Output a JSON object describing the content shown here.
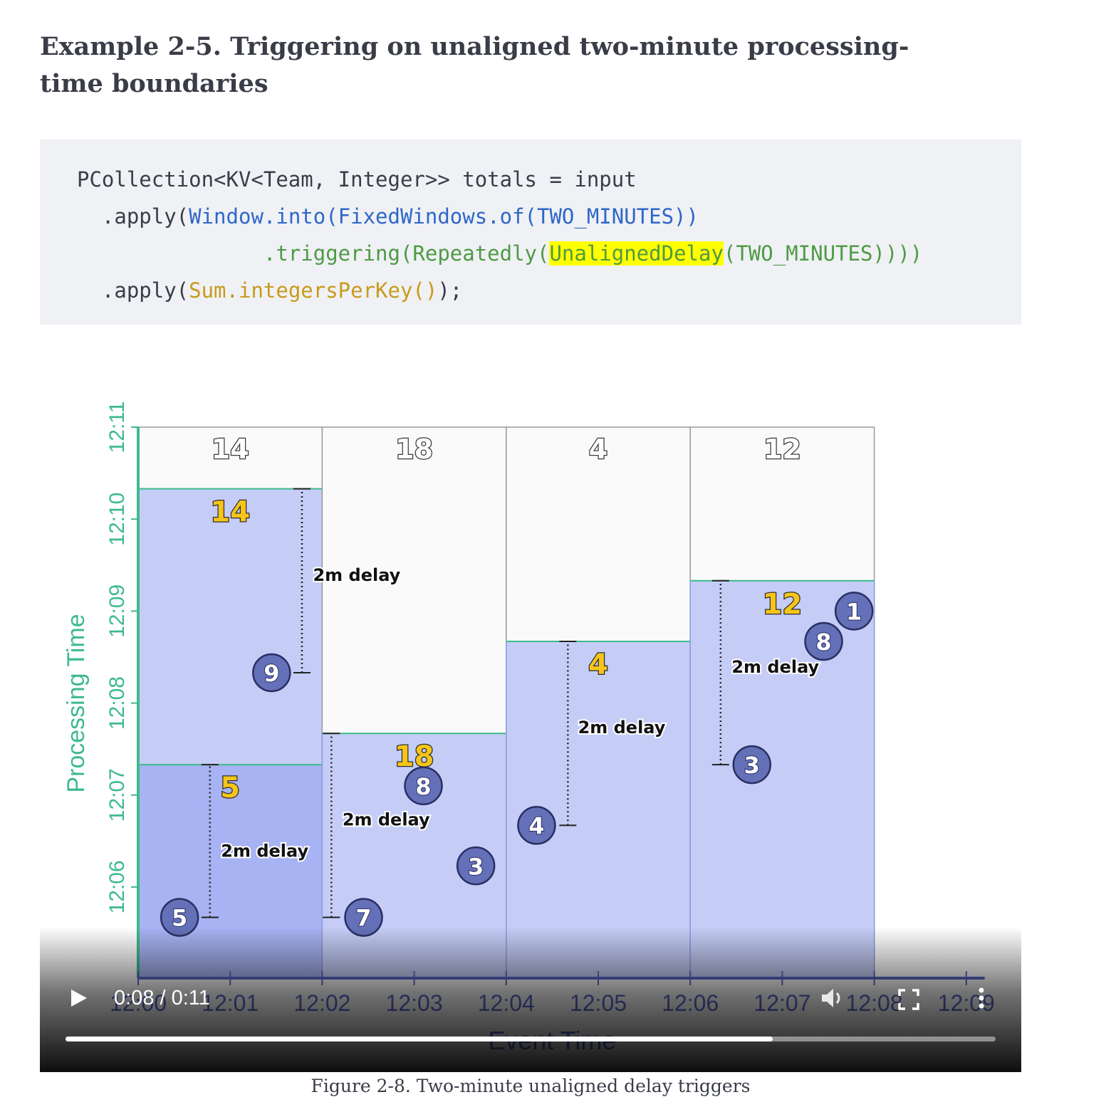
{
  "heading": "Example 2-5. Triggering on unaligned two-minute processing-time boundaries",
  "code": {
    "line1": "PCollection<KV<Team, Integer>> totals = input",
    "line2_prefix": "  .apply(",
    "line2_call": "Window.into(FixedWindows.of(TWO_MINUTES))",
    "line3_prefix": "               .triggering(Repeatedly(",
    "line3_highlight": "UnalignedDelay",
    "line3_suffix": "(TWO_MINUTES))))",
    "line4_prefix": "  .apply(",
    "line4_call": "Sum.integersPerKey()",
    "line4_suffix": ");"
  },
  "chart": {
    "y_axis_label": "Processing Time",
    "x_axis_label": "Event Time",
    "y_ticks": [
      "12:06",
      "12:07",
      "12:08",
      "12:09",
      "12:10",
      "12:11"
    ],
    "x_ticks": [
      "12:00",
      "12:01",
      "12:02",
      "12:03",
      "12:04",
      "12:05",
      "12:06",
      "12:07",
      "12:08",
      "12:09"
    ],
    "delay_label": "2m delay",
    "colors": {
      "axis_green": "#3dba8c",
      "pane_fill": "#c5cdf7",
      "pane_dark": "#a7b3f3",
      "bubble": "#6470b8",
      "result_yellow": "#f5c518"
    },
    "windows": [
      {
        "event_start": 0,
        "top_total": "14",
        "pane_results": [
          "5",
          "14"
        ],
        "pane_ends": [
          7.33,
          10.33
        ]
      },
      {
        "event_start": 2,
        "top_total": "18",
        "pane_results": [
          "18"
        ],
        "pane_ends": [
          7.67
        ]
      },
      {
        "event_start": 4,
        "top_total": "4",
        "pane_results": [
          "4"
        ],
        "pane_ends": [
          8.67
        ]
      },
      {
        "event_start": 6,
        "top_total": "12",
        "pane_results": [
          "12"
        ],
        "pane_ends": [
          9.33
        ]
      }
    ],
    "data_points": [
      {
        "value": "5",
        "event": 0.45,
        "proc": 5.67
      },
      {
        "value": "9",
        "event": 1.45,
        "proc": 8.33
      },
      {
        "value": "7",
        "event": 2.45,
        "proc": 5.67
      },
      {
        "value": "8",
        "event": 3.1,
        "proc": 7.1
      },
      {
        "value": "3",
        "event": 3.67,
        "proc": 6.23
      },
      {
        "value": "4",
        "event": 4.33,
        "proc": 6.67
      },
      {
        "value": "3",
        "event": 6.67,
        "proc": 7.33
      },
      {
        "value": "8",
        "event": 7.45,
        "proc": 8.67
      },
      {
        "value": "1",
        "event": 7.78,
        "proc": 9.0
      }
    ],
    "delays": [
      {
        "event": 0.78,
        "from": 5.67,
        "to": 7.33,
        "label_event": 0.9,
        "label_proc": 6.33
      },
      {
        "event": 1.78,
        "from": 8.33,
        "to": 10.33,
        "label_event": 1.9,
        "label_proc": 9.33
      },
      {
        "event": 2.1,
        "from": 5.67,
        "to": 7.67,
        "label_event": 2.22,
        "label_proc": 6.67
      },
      {
        "event": 4.67,
        "from": 6.67,
        "to": 8.67,
        "label_event": 4.78,
        "label_proc": 7.67
      },
      {
        "event": 6.33,
        "from": 7.33,
        "to": 9.33,
        "label_event": 6.45,
        "label_proc": 8.33
      }
    ]
  },
  "player": {
    "time_display": "0:08 / 0:11",
    "play_icon": "play-icon",
    "volume_icon": "volume-icon",
    "fullscreen_icon": "fullscreen-icon",
    "more_icon": "more-options-icon",
    "progress_fraction": 0.76
  },
  "caption": "Figure 2-8. Two-minute unaligned delay triggers"
}
